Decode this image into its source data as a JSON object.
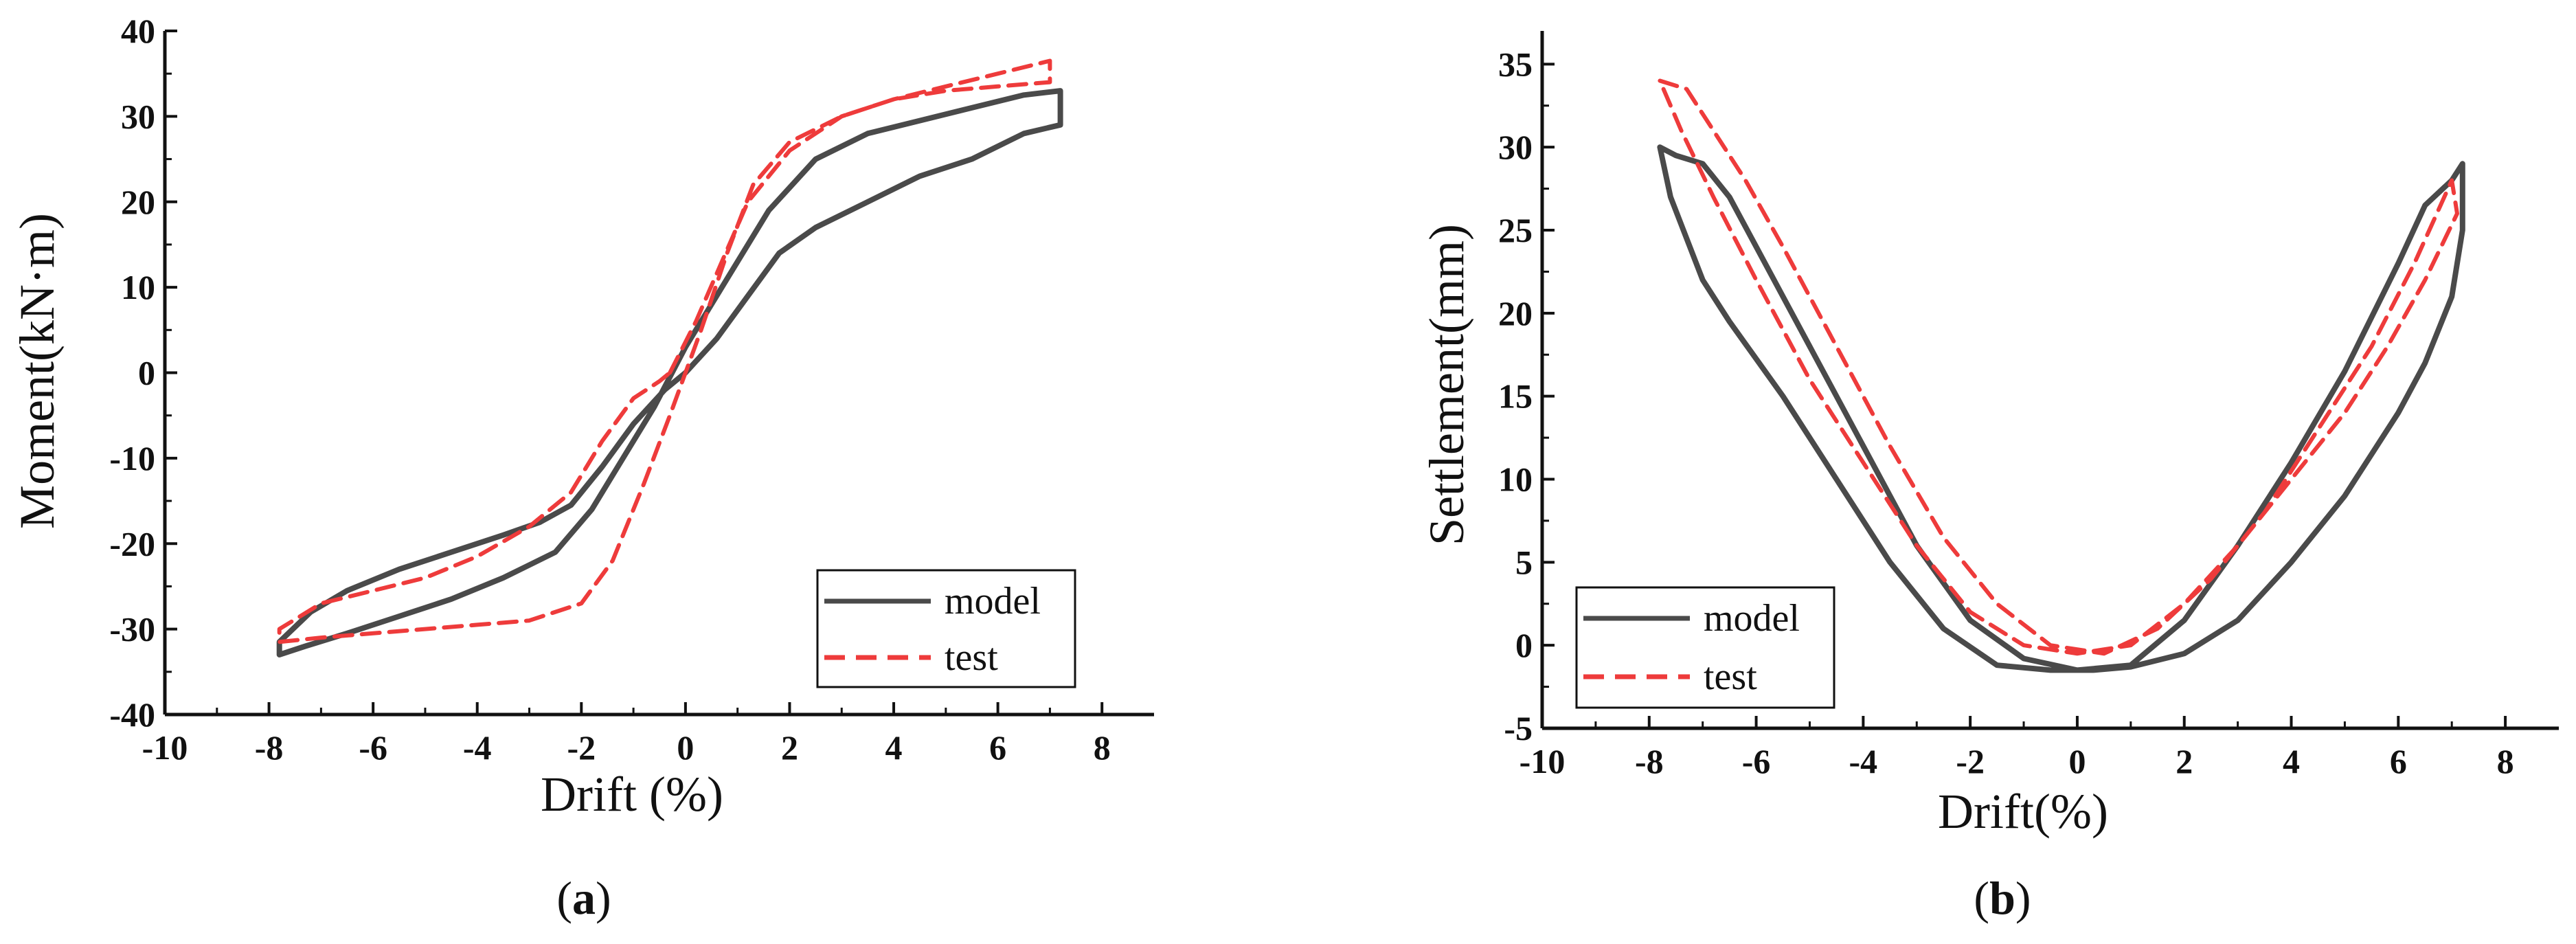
{
  "chart_data": [
    {
      "type": "line",
      "panel": "a",
      "caption": {
        "open": "(",
        "letter": "a",
        "close": ")"
      },
      "xlabel": "Drift (%)",
      "ylabel": "Moment(kN·m)",
      "xlim": [
        -10,
        9
      ],
      "ylim": [
        -40,
        40
      ],
      "xticks": [
        -10,
        -8,
        -6,
        -4,
        -2,
        0,
        2,
        4,
        6,
        8
      ],
      "yticks": [
        -40,
        -30,
        -20,
        -10,
        0,
        10,
        20,
        30,
        40
      ],
      "legend": {
        "position": "bottom-right",
        "entries": [
          "model",
          "test"
        ]
      },
      "series": [
        {
          "name": "model",
          "color": "#4a4a4a",
          "style": "solid",
          "x": [
            0,
            0.6,
            1.2,
            1.8,
            2.5,
            3.5,
            4.5,
            5.5,
            6.5,
            7.2,
            7.2,
            6.5,
            5.5,
            4.5,
            3.5,
            2.5,
            1.6,
            0.8,
            0,
            -0.6,
            -1.2,
            -1.8,
            -2.5,
            -3.5,
            -4.5,
            -5.5,
            -6.5,
            -7.3,
            -7.8,
            -7.8,
            -7.2,
            -6.5,
            -5.5,
            -4.5,
            -3.5,
            -2.8,
            -2.2,
            -1.6,
            -1.0,
            -0.4,
            0
          ],
          "y": [
            0,
            4,
            9,
            14,
            17,
            20,
            23,
            25,
            28,
            29,
            33,
            32.5,
            31,
            29.5,
            28,
            25,
            19,
            11,
            3,
            -4,
            -10,
            -16,
            -21,
            -24,
            -26.5,
            -28.5,
            -30.5,
            -32,
            -33,
            -31.5,
            -28,
            -25.5,
            -23,
            -21,
            -19,
            -17.5,
            -15.5,
            -11,
            -6,
            -2,
            0
          ]
        },
        {
          "name": "test",
          "color": "#ee3b3b",
          "style": "dashed",
          "x": [
            -0.3,
            0.2,
            0.7,
            1.2,
            2.0,
            3.0,
            4.0,
            5.0,
            6.0,
            7.0,
            7.0,
            6.0,
            5.0,
            4.0,
            3.0,
            2.0,
            1.3,
            0.8,
            0.3,
            -0.3,
            -0.8,
            -1.4,
            -2.0,
            -3.0,
            -4.0,
            -5.0,
            -6.0,
            -7.0,
            -7.8,
            -7.8,
            -7.0,
            -6.0,
            -5.0,
            -4.0,
            -3.0,
            -2.2,
            -1.6,
            -1.0,
            -0.5,
            -0.3
          ],
          "y": [
            0,
            6,
            13,
            20,
            26,
            30,
            32,
            33.5,
            35,
            36.5,
            34,
            33.5,
            33,
            32,
            30,
            27,
            22,
            14,
            5,
            -5,
            -13,
            -22,
            -27,
            -29,
            -29.5,
            -30,
            -30.5,
            -31,
            -31.5,
            -30,
            -27,
            -25.5,
            -24,
            -21.5,
            -18,
            -14,
            -8,
            -3,
            -1,
            0
          ]
        }
      ]
    },
    {
      "type": "line",
      "panel": "b",
      "caption": {
        "open": "(",
        "letter": "b",
        "close": ")"
      },
      "xlabel": "Drift(%)",
      "ylabel": "Settlement(mm)",
      "xlim": [
        -10,
        9
      ],
      "ylim": [
        -5,
        37
      ],
      "xticks": [
        -10,
        -8,
        -6,
        -4,
        -2,
        0,
        2,
        4,
        6,
        8
      ],
      "yticks": [
        -5,
        0,
        5,
        10,
        15,
        20,
        25,
        30,
        35
      ],
      "legend": {
        "position": "bottom-left",
        "entries": [
          "model",
          "test"
        ]
      },
      "series": [
        {
          "name": "model",
          "color": "#4a4a4a",
          "style": "solid",
          "x": [
            -7.8,
            -7.5,
            -7.0,
            -6.5,
            -6.0,
            -5.0,
            -4.0,
            -3.0,
            -2.0,
            -1.0,
            0,
            1.0,
            2.0,
            3.0,
            4.0,
            5.0,
            6.0,
            6.5,
            7.0,
            7.2,
            7.2,
            7.0,
            6.5,
            6.0,
            5.0,
            4.0,
            3.0,
            2.0,
            1.0,
            0.3,
            -0.5,
            -1.5,
            -2.5,
            -3.5,
            -4.5,
            -5.5,
            -6.5,
            -7.0,
            -7.6,
            -7.8
          ],
          "y": [
            30,
            29.5,
            29,
            27,
            24,
            18,
            12,
            6,
            1.5,
            -0.8,
            -1.5,
            -1.2,
            1.5,
            6,
            11,
            16.5,
            23,
            26.5,
            28,
            29,
            25,
            21,
            17,
            14,
            9,
            5,
            1.5,
            -0.5,
            -1.3,
            -1.5,
            -1.5,
            -1.2,
            1,
            5,
            10,
            15,
            19.5,
            22,
            27,
            30
          ]
        },
        {
          "name": "test",
          "color": "#ee3b3b",
          "style": "dashed",
          "x": [
            -7.8,
            -7.3,
            -6.8,
            -6.2,
            -5.5,
            -4.5,
            -3.5,
            -2.5,
            -1.5,
            -0.5,
            0.5,
            1.5,
            2.5,
            3.5,
            4.5,
            5.5,
            6.3,
            7.0,
            7.1,
            6.5,
            5.8,
            5.0,
            4.0,
            3.0,
            2.0,
            1.0,
            0,
            -1.0,
            -2.0,
            -3.0,
            -4.0,
            -5.0,
            -6.0,
            -6.8,
            -7.4,
            -7.8
          ],
          "y": [
            34,
            33.5,
            31,
            28,
            24,
            18,
            12,
            6.5,
            2.5,
            0,
            -0.5,
            1,
            4,
            8,
            13,
            18,
            23,
            28,
            26,
            22,
            18,
            14,
            10,
            6,
            2.5,
            0,
            -0.5,
            0,
            2,
            6,
            11,
            16,
            22,
            27,
            31,
            34
          ]
        }
      ]
    }
  ]
}
